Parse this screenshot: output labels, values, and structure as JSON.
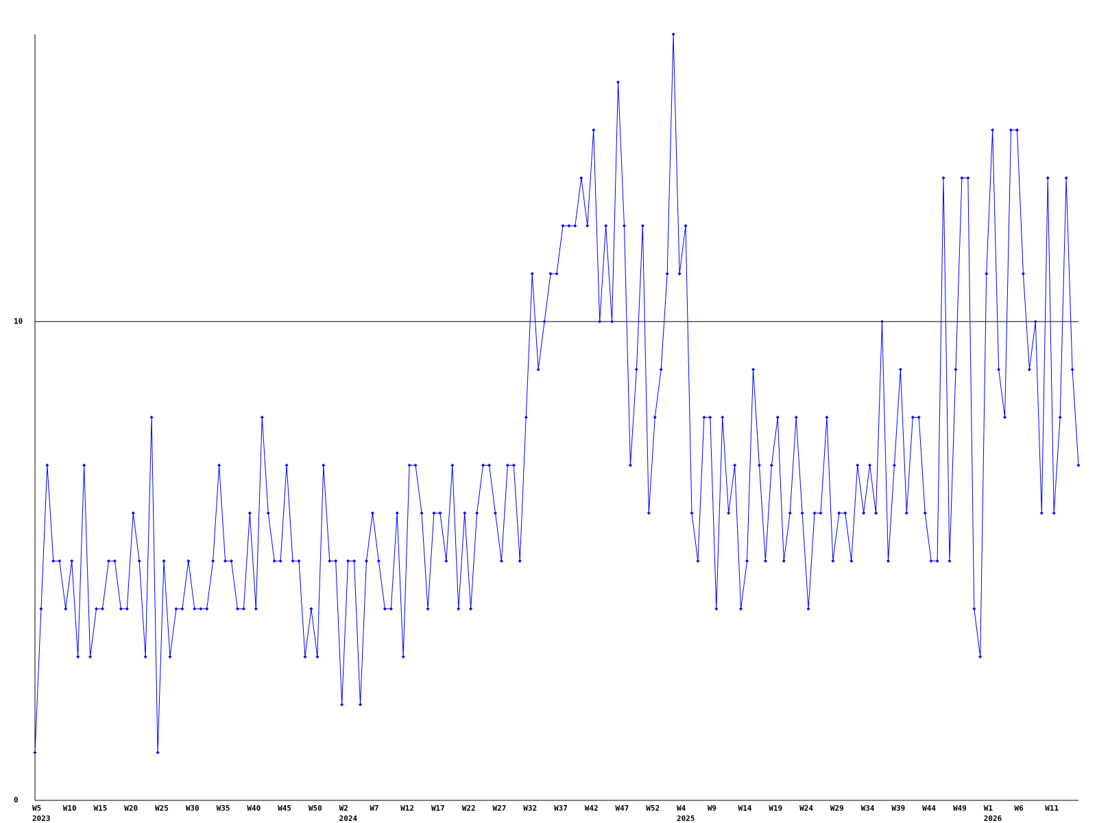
{
  "chart_data": {
    "type": "line",
    "categories": [
      "W5",
      null,
      null,
      null,
      null,
      "W10",
      null,
      null,
      null,
      null,
      "W15",
      null,
      null,
      null,
      null,
      "W20",
      null,
      null,
      null,
      null,
      "W25",
      null,
      null,
      null,
      null,
      "W30",
      null,
      null,
      null,
      null,
      "W35",
      null,
      null,
      null,
      null,
      "W40",
      null,
      null,
      null,
      null,
      "W45",
      null,
      null,
      null,
      null,
      "W50",
      null,
      null,
      null,
      null,
      "W2",
      null,
      null,
      null,
      null,
      "W7",
      null,
      null,
      null,
      null,
      "W12",
      null,
      null,
      null,
      null,
      "W17",
      null,
      null,
      null,
      null,
      "W22",
      null,
      null,
      null,
      null,
      "W27",
      null,
      null,
      null,
      null,
      "W32",
      null,
      null,
      null,
      null,
      "W37",
      null,
      null,
      null,
      null,
      "W42",
      null,
      null,
      null,
      null,
      "W47",
      null,
      null,
      null,
      null,
      "W52",
      null,
      null,
      null,
      null,
      "W4",
      null,
      null,
      null,
      null,
      "W9",
      null,
      null,
      null,
      null,
      "W14",
      null,
      null,
      null,
      null,
      "W19",
      null,
      null,
      null,
      null,
      "W24",
      null,
      null,
      null,
      null,
      "W29",
      null,
      null,
      null,
      null,
      "W34",
      null,
      null,
      null,
      null,
      "W39",
      null,
      null,
      null,
      null,
      "W44",
      null,
      null,
      null,
      null,
      "W49",
      null,
      null,
      null,
      null,
      "W1",
      null,
      null,
      null,
      null,
      "W6",
      null,
      null,
      null,
      null,
      "W11",
      null,
      null,
      null,
      null,
      null
    ],
    "years": [
      "2023",
      null,
      null,
      null,
      null,
      null,
      null,
      null,
      null,
      null,
      null,
      null,
      null,
      null,
      null,
      null,
      null,
      null,
      null,
      null,
      null,
      null,
      null,
      null,
      null,
      null,
      null,
      null,
      null,
      null,
      null,
      null,
      null,
      null,
      null,
      null,
      null,
      null,
      null,
      null,
      null,
      null,
      null,
      null,
      null,
      null,
      null,
      null,
      null,
      null,
      "2024",
      null,
      null,
      null,
      null,
      null,
      null,
      null,
      null,
      null,
      null,
      null,
      null,
      null,
      null,
      null,
      null,
      null,
      null,
      null,
      null,
      null,
      null,
      null,
      null,
      null,
      null,
      null,
      null,
      null,
      null,
      null,
      null,
      null,
      null,
      null,
      null,
      null,
      null,
      null,
      null,
      null,
      null,
      null,
      null,
      null,
      null,
      null,
      null,
      null,
      null,
      null,
      null,
      null,
      null,
      "2025",
      null,
      null,
      null,
      null,
      null,
      null,
      null,
      null,
      null,
      null,
      null,
      null,
      null,
      null,
      null,
      null,
      null,
      null,
      null,
      null,
      null,
      null,
      null,
      null,
      null,
      null,
      null,
      null,
      null,
      null,
      null,
      null,
      null,
      null,
      null,
      null,
      null,
      null,
      null,
      null,
      null,
      null,
      null,
      null,
      null,
      null,
      null,
      null,
      null,
      "2026",
      null,
      null,
      null,
      null,
      null,
      null,
      null,
      null,
      null,
      null,
      null,
      null,
      null,
      null,
      null
    ],
    "values": [
      1,
      4,
      7,
      5,
      5,
      4,
      5,
      3,
      7,
      3,
      4,
      4,
      5,
      5,
      4,
      4,
      6,
      5,
      3,
      8,
      1,
      5,
      3,
      4,
      4,
      5,
      4,
      4,
      4,
      5,
      7,
      5,
      5,
      4,
      4,
      6,
      4,
      8,
      6,
      5,
      5,
      7,
      5,
      5,
      3,
      4,
      3,
      7,
      5,
      5,
      2,
      5,
      5,
      2,
      5,
      6,
      5,
      4,
      4,
      6,
      3,
      7,
      7,
      6,
      4,
      6,
      6,
      5,
      7,
      4,
      6,
      4,
      6,
      7,
      7,
      6,
      5,
      7,
      7,
      5,
      8,
      11,
      9,
      10,
      11,
      11,
      12,
      12,
      12,
      13,
      12,
      14,
      10,
      12,
      10,
      15,
      12,
      7,
      9,
      12,
      6,
      8,
      9,
      11,
      16,
      11,
      12,
      6,
      5,
      8,
      8,
      4,
      8,
      6,
      7,
      4,
      5,
      9,
      7,
      5,
      7,
      8,
      5,
      6,
      8,
      6,
      4,
      6,
      6,
      8,
      5,
      6,
      6,
      5,
      7,
      6,
      7,
      6,
      10,
      5,
      7,
      9,
      6,
      8,
      8,
      6,
      5,
      5,
      13,
      5,
      9,
      13,
      13,
      4,
      3,
      11,
      14,
      9,
      8,
      14,
      14,
      11,
      9,
      10,
      6,
      13,
      6,
      8,
      13,
      9,
      7
    ],
    "color": "#0000ff",
    "ylim": [
      0,
      16
    ],
    "yticks": [
      0,
      10
    ],
    "grid": true
  }
}
